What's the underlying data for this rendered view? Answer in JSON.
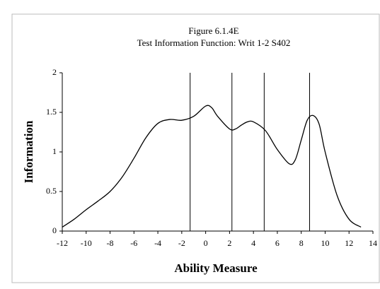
{
  "chart_data": {
    "type": "line",
    "title": "Figure 6.1.4E",
    "subtitle": "Test Information Function: Writ 1-2 S402",
    "xlabel": "Ability Measure",
    "ylabel": "Information",
    "x": [
      -12,
      -11,
      -10,
      -9,
      -8,
      -7,
      -6,
      -5,
      -4,
      -3,
      -2,
      -1,
      0,
      0.5,
      1,
      2,
      2.5,
      3,
      3.5,
      4,
      5,
      6,
      7,
      7.5,
      8,
      8.5,
      9,
      9.5,
      10,
      11,
      12,
      13
    ],
    "series": [
      {
        "name": "Information",
        "color": "#000000",
        "values": [
          0.05,
          0.15,
          0.27,
          0.38,
          0.5,
          0.68,
          0.92,
          1.18,
          1.36,
          1.41,
          1.4,
          1.45,
          1.58,
          1.56,
          1.45,
          1.29,
          1.29,
          1.34,
          1.38,
          1.38,
          1.27,
          1.03,
          0.85,
          0.9,
          1.15,
          1.4,
          1.46,
          1.35,
          1.0,
          0.45,
          0.15,
          0.05
        ]
      }
    ],
    "vlines": [
      -1.3,
      2.2,
      4.9,
      8.7
    ],
    "xlim": [
      -12,
      14
    ],
    "xticks": [
      -12,
      -10,
      -8,
      -6,
      -4,
      -2,
      0,
      2,
      4,
      6,
      8,
      10,
      12,
      14
    ],
    "ylim": [
      0,
      2
    ],
    "yticks": [
      0,
      0.5,
      1,
      1.5,
      2
    ]
  }
}
